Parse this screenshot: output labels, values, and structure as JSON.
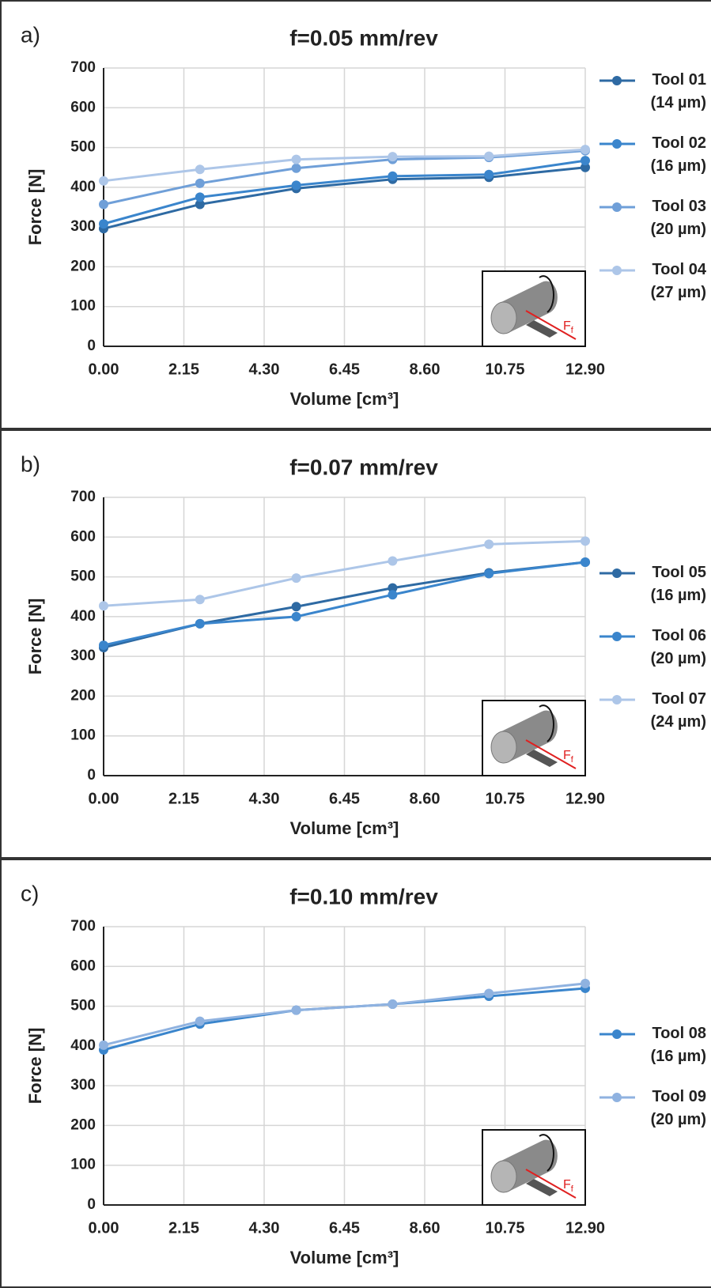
{
  "chart_data": [
    {
      "type": "line",
      "panel_label": "a)",
      "title": "f=0.05 mm/rev",
      "x_label": "Volume [cm³]",
      "y_label": "Force [N]",
      "inset_label": "F",
      "inset_subscript": "f",
      "x": [
        0,
        2.58,
        5.16,
        7.74,
        10.32,
        12.9
      ],
      "xlim": [
        0,
        12.9
      ],
      "xticks": [
        {
          "value": 0,
          "label": "0.00"
        },
        2.15,
        {
          "value": 4.3,
          "label": "4.30"
        },
        6.45,
        {
          "value": 8.6,
          "label": "8.60"
        },
        10.75,
        {
          "value": 12.9,
          "label": "12.90"
        }
      ],
      "ylim": [
        0,
        700
      ],
      "yticks": [
        0,
        100,
        200,
        300,
        400,
        500,
        600,
        700
      ],
      "grid": true,
      "legend": "right",
      "series": [
        {
          "name": "Tool 01 (14 µm)",
          "color": "#2e6aa3",
          "values": [
            296,
            357,
            397,
            420,
            425,
            450
          ]
        },
        {
          "name": "Tool 02 (16 µm)",
          "color": "#3a85cc",
          "values": [
            308,
            375,
            405,
            428,
            432,
            467
          ]
        },
        {
          "name": "Tool 03 (20 µm)",
          "color": "#6f9fd8",
          "values": [
            357,
            410,
            448,
            470,
            475,
            492
          ]
        },
        {
          "name": "Tool 04 (27 µm)",
          "color": "#adc6e8",
          "values": [
            416,
            445,
            470,
            477,
            478,
            495
          ]
        }
      ]
    },
    {
      "type": "line",
      "panel_label": "b)",
      "title": "f=0.07 mm/rev",
      "x_label": "Volume [cm³]",
      "y_label": "Force [N]",
      "inset_label": "F",
      "inset_subscript": "f",
      "x": [
        0,
        2.58,
        5.16,
        7.74,
        10.32,
        12.9
      ],
      "xlim": [
        0,
        12.9
      ],
      "xticks": [
        {
          "value": 0,
          "label": "0.00"
        },
        2.15,
        {
          "value": 4.3,
          "label": "4.30"
        },
        6.45,
        {
          "value": 8.6,
          "label": "8.60"
        },
        10.75,
        {
          "value": 12.9,
          "label": "12.90"
        }
      ],
      "ylim": [
        0,
        700
      ],
      "yticks": [
        0,
        100,
        200,
        300,
        400,
        500,
        600,
        700
      ],
      "grid": true,
      "legend": "right",
      "series": [
        {
          "name": "Tool 05 (16 µm)",
          "color": "#2e6aa3",
          "values": [
            322,
            382,
            425,
            472,
            510,
            537
          ]
        },
        {
          "name": "Tool 06 (20 µm)",
          "color": "#3a85cc",
          "values": [
            328,
            382,
            400,
            455,
            508,
            537
          ]
        },
        {
          "name": "Tool 07 (24 µm)",
          "color": "#adc6e8",
          "values": [
            427,
            443,
            497,
            540,
            582,
            590
          ]
        }
      ]
    },
    {
      "type": "line",
      "panel_label": "c)",
      "title": "f=0.10 mm/rev",
      "x_label": "Volume [cm³]",
      "y_label": "Force [N]",
      "inset_label": "F",
      "inset_subscript": "f",
      "x": [
        0,
        2.58,
        5.16,
        7.74,
        10.32,
        12.9
      ],
      "xlim": [
        0,
        12.9
      ],
      "xticks": [
        {
          "value": 0,
          "label": "0.00"
        },
        2.15,
        {
          "value": 4.3,
          "label": "4.30"
        },
        6.45,
        {
          "value": 8.6,
          "label": "8.60"
        },
        10.75,
        {
          "value": 12.9,
          "label": "12.90"
        }
      ],
      "ylim": [
        0,
        700
      ],
      "yticks": [
        0,
        100,
        200,
        300,
        400,
        500,
        600,
        700
      ],
      "grid": true,
      "legend": "right",
      "series": [
        {
          "name": "Tool 08 (16 µm)",
          "color": "#3a85cc",
          "values": [
            390,
            455,
            490,
            505,
            525,
            545
          ]
        },
        {
          "name": "Tool 09 (20 µm)",
          "color": "#8fb2e0",
          "values": [
            402,
            462,
            490,
            505,
            532,
            557
          ]
        }
      ]
    }
  ]
}
